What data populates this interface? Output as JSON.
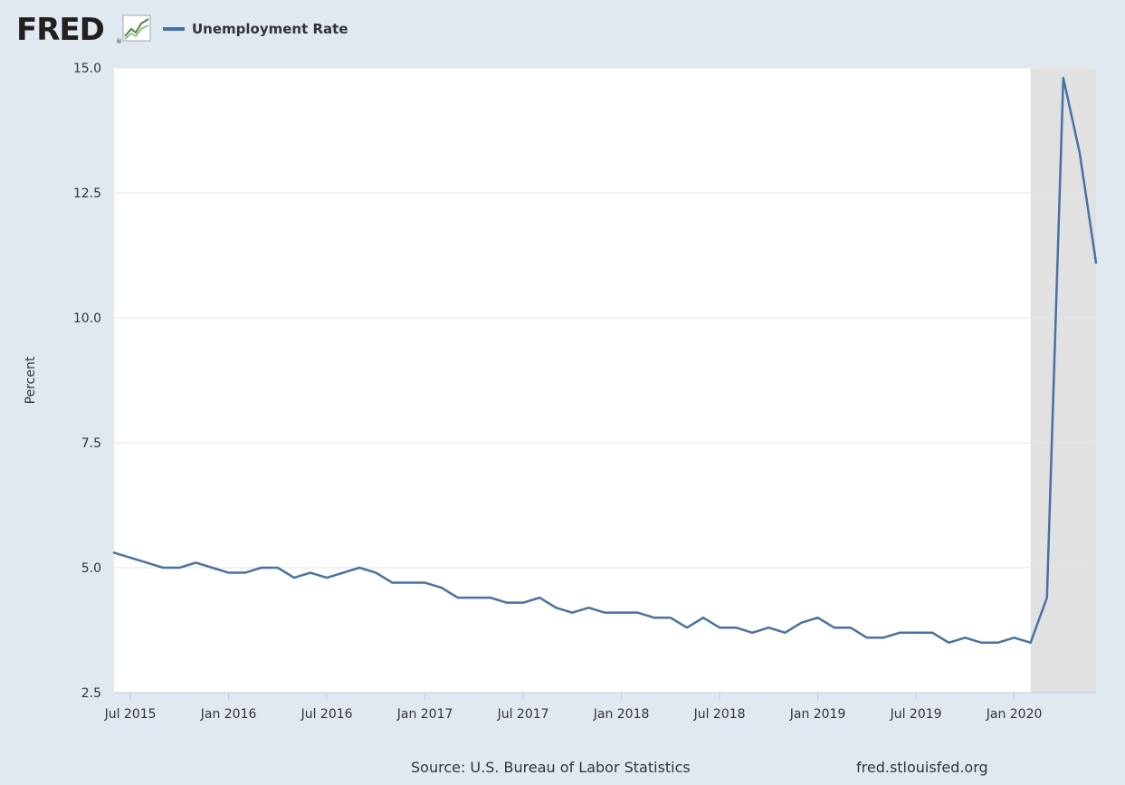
{
  "header": {
    "logo_text": "FRED",
    "logo_reg": "®",
    "legend_label": "Unemployment Rate",
    "series_color": "#4572a7"
  },
  "footer": {
    "source": "Source: U.S. Bureau of Labor Statistics",
    "url": "fred.stlouisfed.org"
  },
  "chart_data": {
    "type": "line",
    "ylabel": "Percent",
    "ylim": [
      2.5,
      15.0
    ],
    "yticks": [
      "15.0",
      "12.5",
      "10.0",
      "7.5",
      "5.0",
      "2.5"
    ],
    "xticks": [
      {
        "label": "Jul 2015",
        "date": "2015-07"
      },
      {
        "label": "Jan 2016",
        "date": "2016-01"
      },
      {
        "label": "Jul 2016",
        "date": "2016-07"
      },
      {
        "label": "Jan 2017",
        "date": "2017-01"
      },
      {
        "label": "Jul 2017",
        "date": "2017-07"
      },
      {
        "label": "Jan 2018",
        "date": "2018-01"
      },
      {
        "label": "Jul 2018",
        "date": "2018-07"
      },
      {
        "label": "Jan 2019",
        "date": "2019-01"
      },
      {
        "label": "Jul 2019",
        "date": "2019-07"
      },
      {
        "label": "Jan 2020",
        "date": "2020-01"
      }
    ],
    "xlim": [
      "2015-06",
      "2020-06"
    ],
    "grid": "horizontal",
    "recession": {
      "start": "2020-02",
      "end": "2020-06",
      "color": "#e1e1e1"
    },
    "series": [
      {
        "name": "Unemployment Rate",
        "color": "#4572a7",
        "x": [
          "2015-06",
          "2015-07",
          "2015-08",
          "2015-09",
          "2015-10",
          "2015-11",
          "2015-12",
          "2016-01",
          "2016-02",
          "2016-03",
          "2016-04",
          "2016-05",
          "2016-06",
          "2016-07",
          "2016-08",
          "2016-09",
          "2016-10",
          "2016-11",
          "2016-12",
          "2017-01",
          "2017-02",
          "2017-03",
          "2017-04",
          "2017-05",
          "2017-06",
          "2017-07",
          "2017-08",
          "2017-09",
          "2017-10",
          "2017-11",
          "2017-12",
          "2018-01",
          "2018-02",
          "2018-03",
          "2018-04",
          "2018-05",
          "2018-06",
          "2018-07",
          "2018-08",
          "2018-09",
          "2018-10",
          "2018-11",
          "2018-12",
          "2019-01",
          "2019-02",
          "2019-03",
          "2019-04",
          "2019-05",
          "2019-06",
          "2019-07",
          "2019-08",
          "2019-09",
          "2019-10",
          "2019-11",
          "2019-12",
          "2020-01",
          "2020-02",
          "2020-03",
          "2020-04",
          "2020-05",
          "2020-06"
        ],
        "y": [
          5.3,
          5.2,
          5.1,
          5.0,
          5.0,
          5.1,
          5.0,
          4.9,
          4.9,
          5.0,
          5.0,
          4.8,
          4.9,
          4.8,
          4.9,
          5.0,
          4.9,
          4.7,
          4.7,
          4.7,
          4.6,
          4.4,
          4.4,
          4.4,
          4.3,
          4.3,
          4.4,
          4.2,
          4.1,
          4.2,
          4.1,
          4.1,
          4.1,
          4.0,
          4.0,
          3.8,
          4.0,
          3.8,
          3.8,
          3.7,
          3.8,
          3.7,
          3.9,
          4.0,
          3.8,
          3.8,
          3.6,
          3.6,
          3.7,
          3.7,
          3.7,
          3.5,
          3.6,
          3.5,
          3.5,
          3.6,
          3.5,
          4.4,
          14.8,
          13.3,
          11.1
        ]
      }
    ]
  }
}
